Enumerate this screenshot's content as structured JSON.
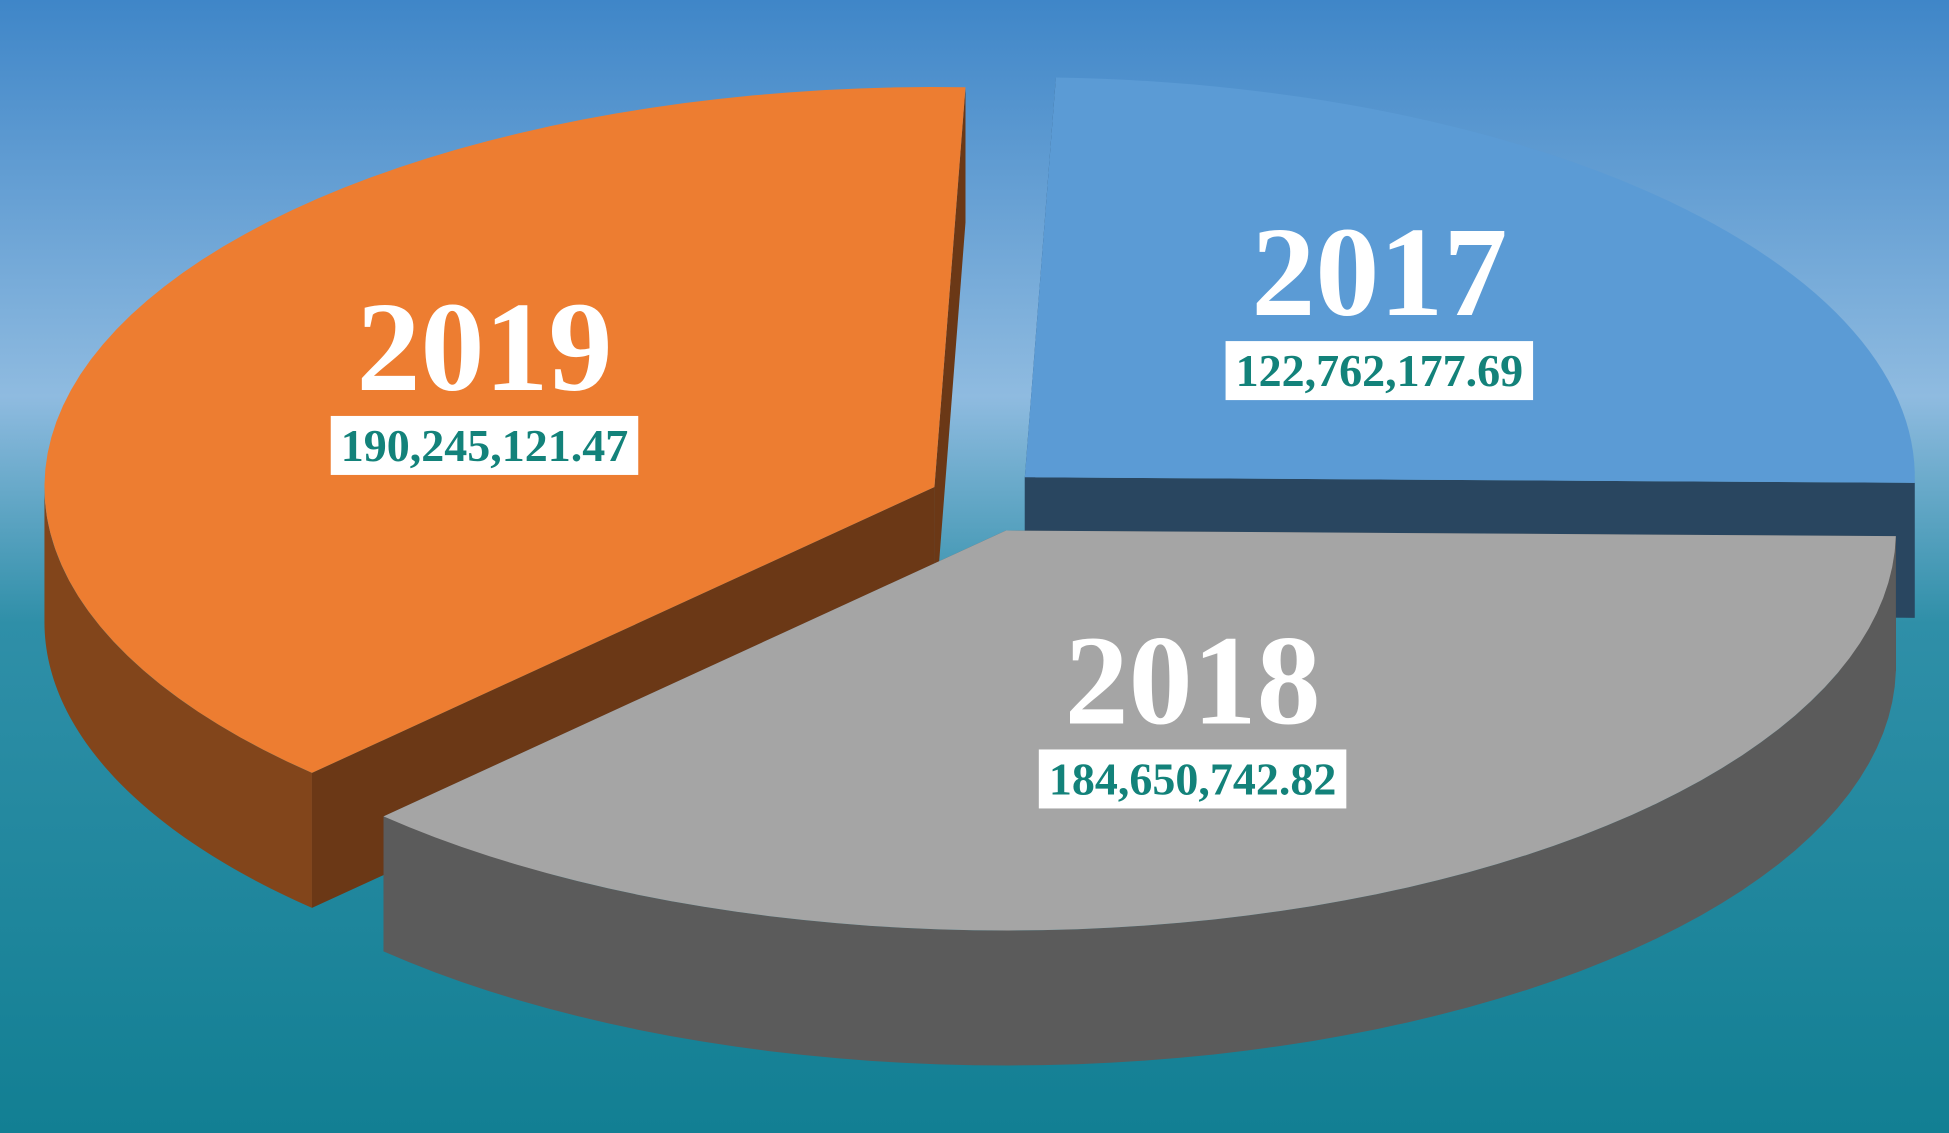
{
  "chart_data": {
    "type": "pie",
    "categories": [
      "2017",
      "2018",
      "2019"
    ],
    "values": [
      122762177.69,
      184650742.82,
      190245121.47
    ],
    "value_labels": [
      "122,762,177.69",
      "184,650,742.82",
      "190,245,121.47"
    ],
    "colors": [
      "#5b9bd5",
      "#a5a5a5",
      "#ed7d31"
    ],
    "order": "clockwise",
    "three_d": true,
    "exploded": true
  }
}
